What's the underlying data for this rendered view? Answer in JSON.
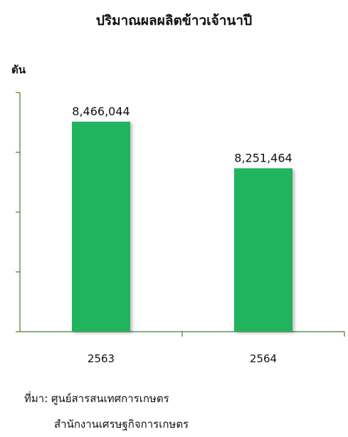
{
  "chart_data": {
    "type": "bar",
    "title": "ปริมาณผลผลิตข้าวเจ้านาปี",
    "ylabel": "ตัน",
    "xlabel": "",
    "categories": [
      "2563",
      "2564"
    ],
    "values": [
      8466044,
      8251464
    ],
    "value_labels": [
      "8,466,044",
      "8,251,464"
    ],
    "ylim": [
      7500000,
      8600000
    ],
    "y_ticks_labeled": false,
    "grid": false,
    "bar_color": "#22b35e",
    "axis_color": "#4a7a2a"
  },
  "source": {
    "line1": "ที่มา: ศูนย์สารสนเทศการเกษตร",
    "line2": "สำนักงานเศรษฐกิจการเกษตร"
  }
}
